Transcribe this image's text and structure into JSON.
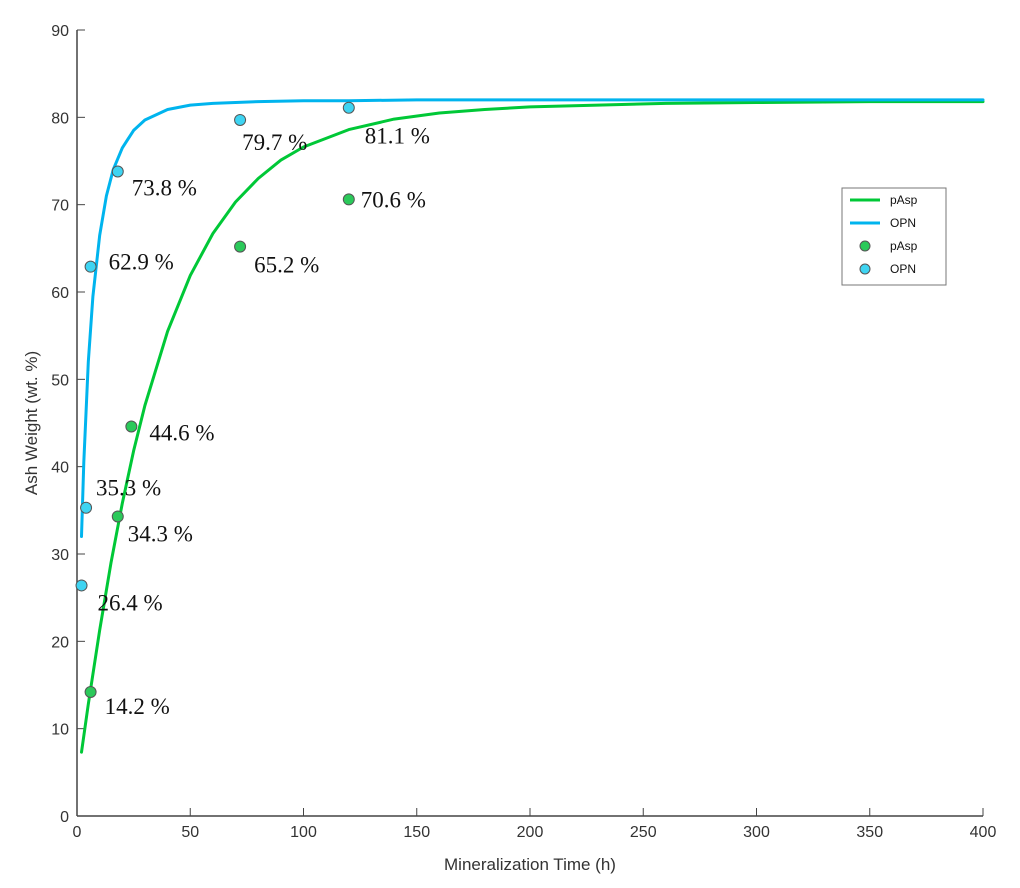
{
  "chart_data": {
    "type": "scatter",
    "title": "",
    "xlabel": "Mineralization Time (h)",
    "ylabel": "Ash Weight (wt. %)",
    "xlim": [
      0,
      400
    ],
    "ylim": [
      0,
      90
    ],
    "xticks": [
      0,
      50,
      100,
      150,
      200,
      250,
      300,
      350,
      400
    ],
    "yticks": [
      0,
      10,
      20,
      30,
      40,
      50,
      60,
      70,
      80,
      90
    ],
    "grid": false,
    "legend_position": "right",
    "series": [
      {
        "name": "pAsp",
        "kind": "fit-line",
        "color": "#00c837",
        "x": [
          2,
          5,
          10,
          15,
          20,
          25,
          30,
          40,
          50,
          60,
          70,
          80,
          90,
          100,
          120,
          140,
          160,
          180,
          200,
          230,
          260,
          300,
          350,
          400
        ],
        "y": [
          7.3,
          12.8,
          21.3,
          29.0,
          35.8,
          41.8,
          47.0,
          55.5,
          61.9,
          66.7,
          70.3,
          73.0,
          75.1,
          76.6,
          78.6,
          79.8,
          80.5,
          80.9,
          81.2,
          81.4,
          81.6,
          81.7,
          81.8,
          81.8
        ]
      },
      {
        "name": "OPN",
        "kind": "fit-line",
        "color": "#00b4ee",
        "x": [
          2,
          3,
          5,
          7,
          10,
          13,
          16,
          20,
          25,
          30,
          40,
          50,
          60,
          70,
          80,
          100,
          120,
          150,
          200,
          300,
          400
        ],
        "y": [
          32.0,
          40.5,
          52.0,
          59.5,
          66.5,
          71.0,
          74.0,
          76.5,
          78.5,
          79.7,
          80.9,
          81.4,
          81.6,
          81.7,
          81.8,
          81.9,
          81.9,
          82.0,
          82.0,
          82.0,
          82.0
        ]
      },
      {
        "name": "pAsp",
        "kind": "points",
        "color": "#2bc95a",
        "x": [
          6,
          18,
          24,
          72,
          120
        ],
        "y": [
          14.2,
          34.3,
          44.6,
          65.2,
          70.6
        ],
        "labels": [
          "14.2 %",
          "34.3 %",
          "44.6 %",
          "65.2 %",
          "70.6 %"
        ]
      },
      {
        "name": "OPN",
        "kind": "points",
        "color": "#3ed4f2",
        "x": [
          2,
          4,
          6,
          18,
          72,
          120
        ],
        "y": [
          26.4,
          35.3,
          62.9,
          73.8,
          79.7,
          81.1
        ],
        "labels": [
          "26.4 %",
          "35.3 %",
          "62.9 %",
          "73.8 %",
          "79.7 %",
          "81.1 %"
        ]
      }
    ]
  }
}
